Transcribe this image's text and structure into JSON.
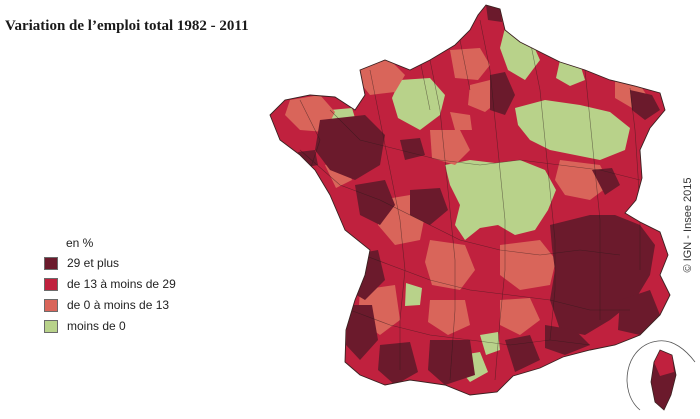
{
  "title": "Variation de l’emploi total 1982 - 2011",
  "legend": {
    "unit": "en %",
    "classes": [
      {
        "label": "29 et plus",
        "color": "#6b1a2c"
      },
      {
        "label": "de 13 à moins de  29",
        "color": "#c0213e"
      },
      {
        "label": "de 0 à moins de 13",
        "color": "#d9655a"
      },
      {
        "label": "moins de 0",
        "color": "#b8d28a"
      }
    ]
  },
  "credit": "© IGN - Insee 2015"
}
